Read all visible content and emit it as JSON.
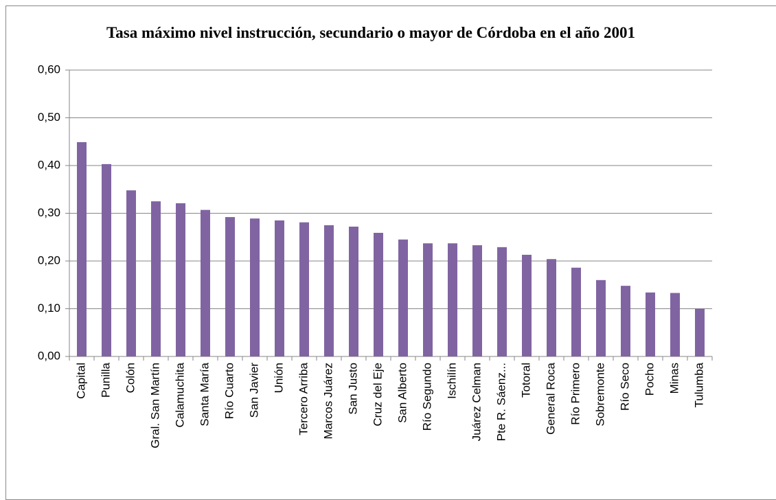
{
  "chart_data": {
    "type": "bar",
    "title": "Tasa máximo nivel instrucción, secundario o mayor de Córdoba en el año 2001",
    "categories": [
      "Capital",
      "Punilla",
      "Colón",
      "Gral. San Martín",
      "Calamuchita",
      "Santa María",
      "Río Cuarto",
      "San Javier",
      "Unión",
      "Tercero Arriba",
      "Marcos Juárez",
      "San Justo",
      "Cruz del Eje",
      "San Alberto",
      "Río Segundo",
      "Ischilín",
      "Juárez Celman",
      "Pte R. Sáenz...",
      "Totoral",
      "General Roca",
      "Río Primero",
      "Sobremonte",
      "Río Seco",
      "Pocho",
      "Minas",
      "Tulumba"
    ],
    "values": [
      0.449,
      0.403,
      0.348,
      0.325,
      0.321,
      0.307,
      0.292,
      0.289,
      0.285,
      0.281,
      0.275,
      0.272,
      0.259,
      0.245,
      0.237,
      0.237,
      0.233,
      0.229,
      0.213,
      0.204,
      0.186,
      0.16,
      0.148,
      0.134,
      0.133,
      0.1
    ],
    "color": "#8064a2",
    "ylim": [
      0,
      0.6
    ],
    "yticks": [
      {
        "value": 0,
        "label": "0,00"
      },
      {
        "value": 0.1,
        "label": "0,10"
      },
      {
        "value": 0.2,
        "label": "0,20"
      },
      {
        "value": 0.3,
        "label": "0,30"
      },
      {
        "value": 0.4,
        "label": "0,40"
      },
      {
        "value": 0.5,
        "label": "0,50"
      },
      {
        "value": 0.6,
        "label": "0,60"
      }
    ],
    "grid": true
  }
}
